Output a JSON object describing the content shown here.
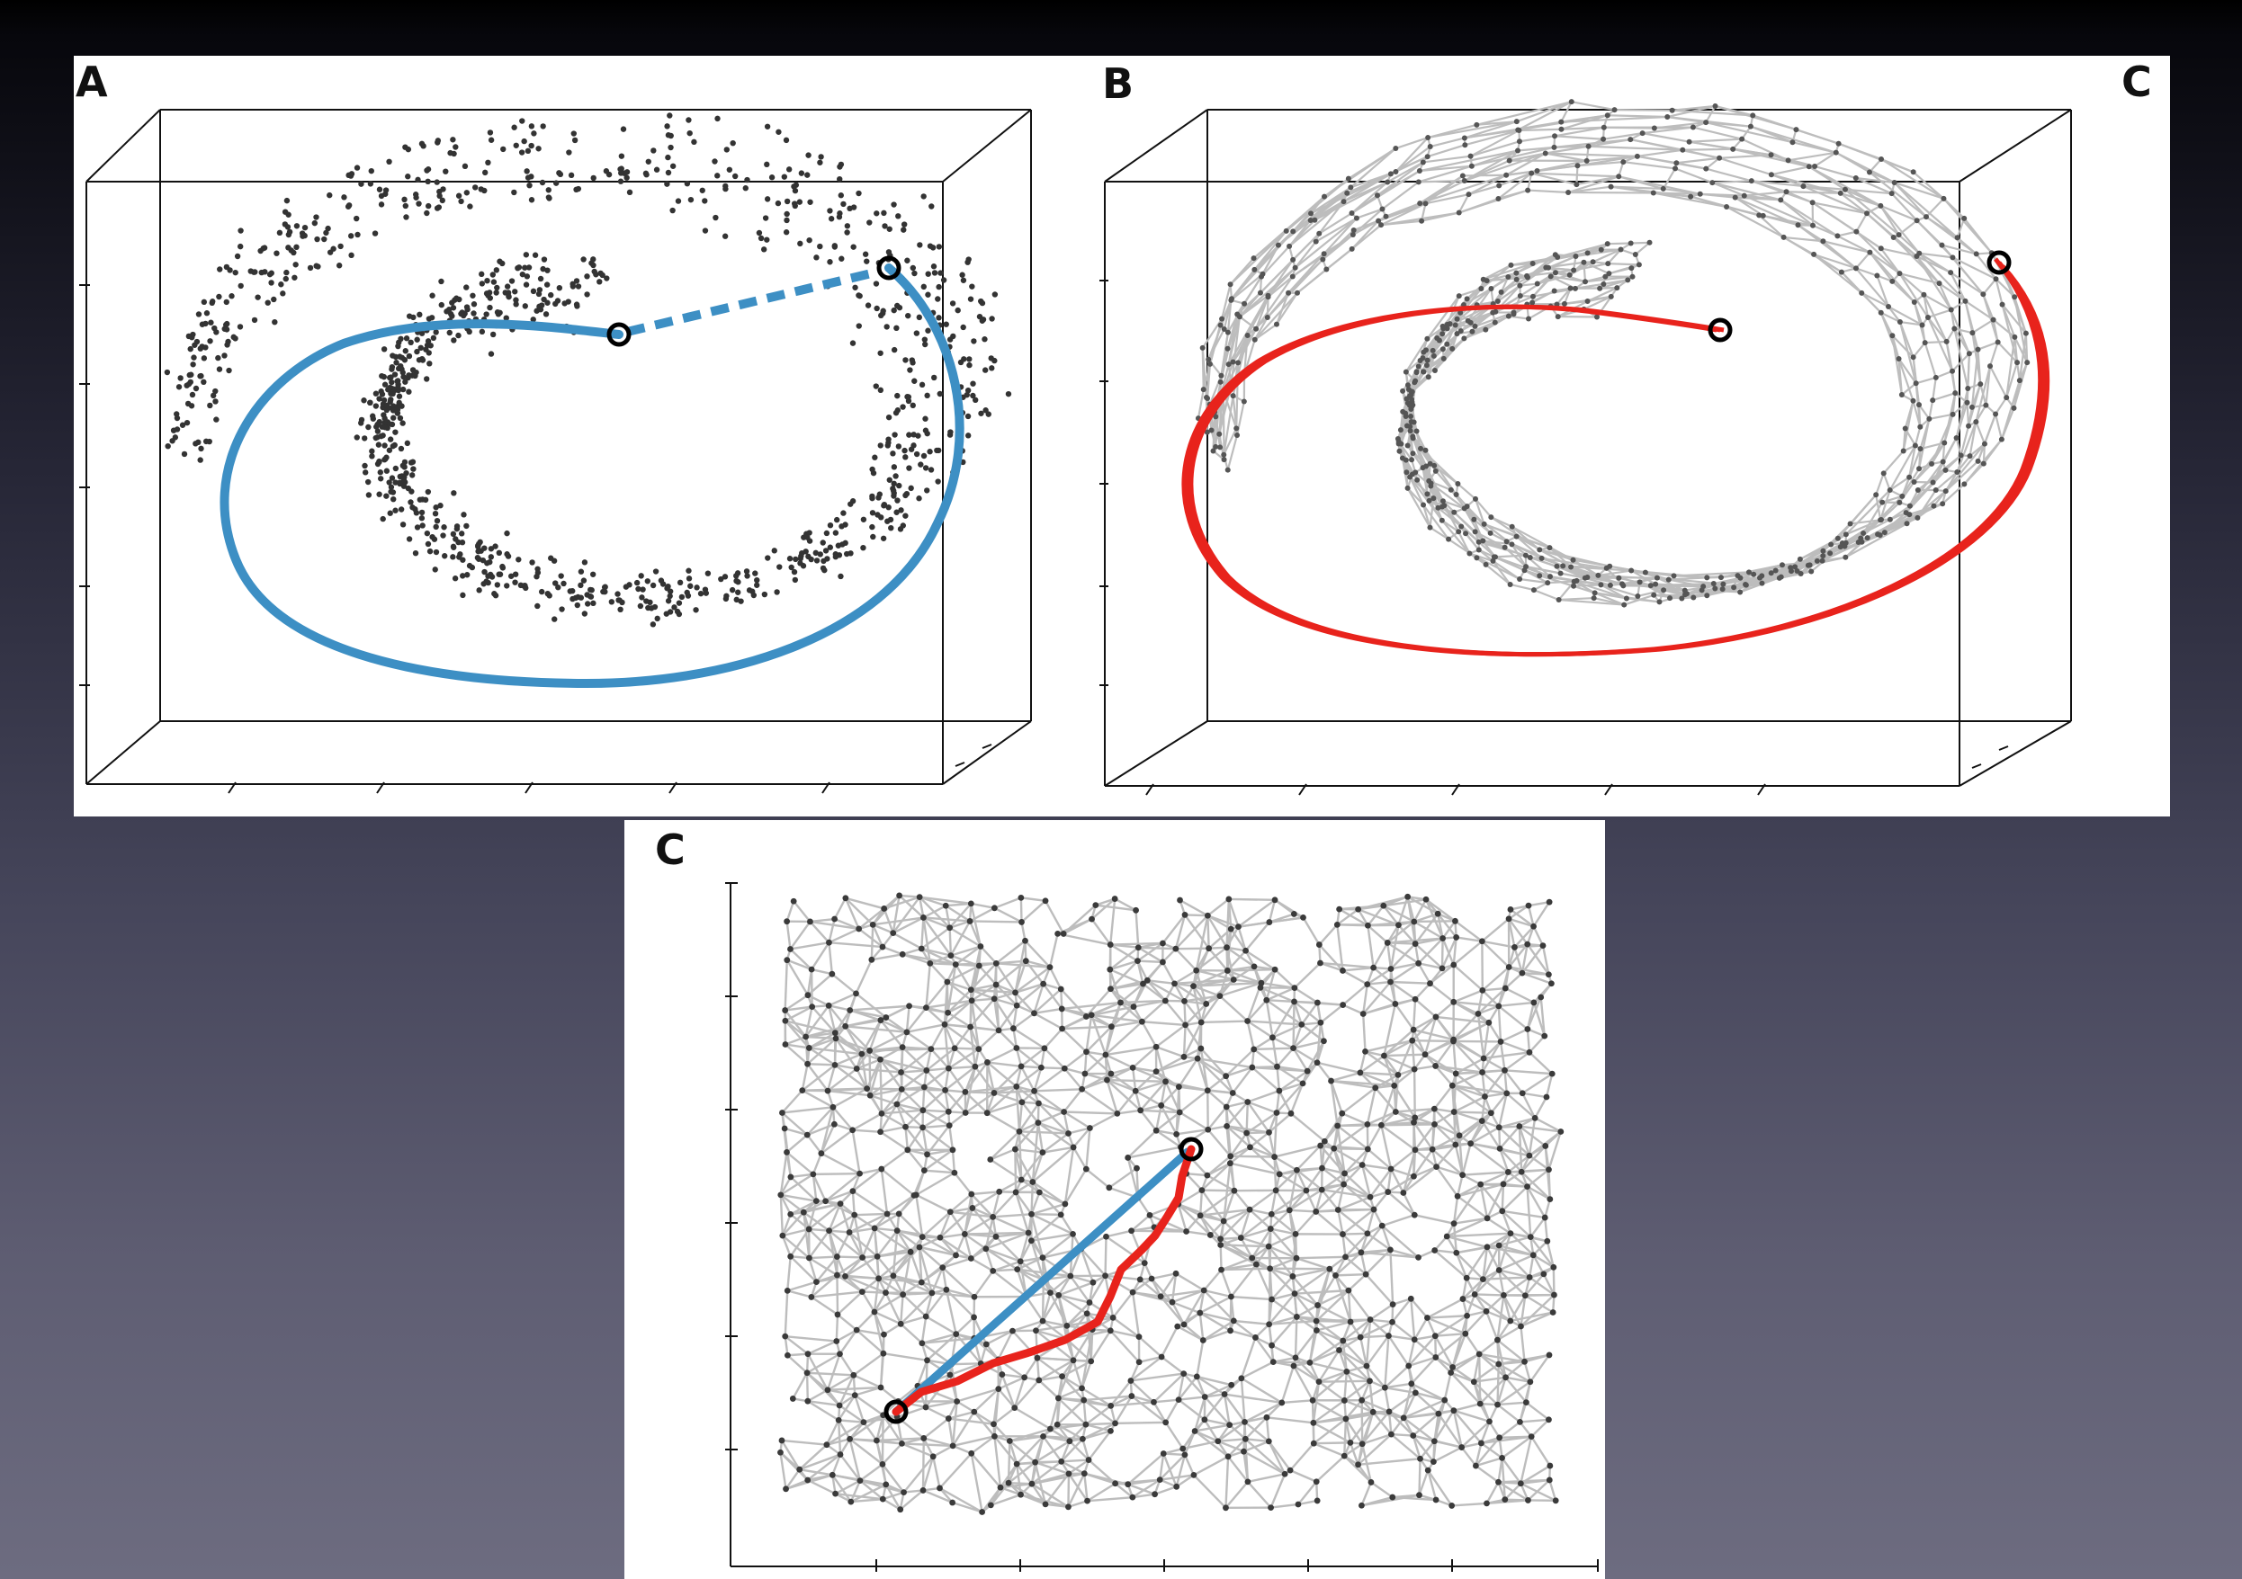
{
  "panels": {
    "a": {
      "label": "A"
    },
    "b": {
      "label": "B"
    },
    "c_top": {
      "label": "C"
    },
    "c_bottom": {
      "label": "C"
    }
  },
  "colors": {
    "points": "#333333",
    "edges": "#bdbdbd",
    "geodesic_path": "#e8231c",
    "euclidean_line": "#3d8fc4",
    "marker": "#000000"
  }
}
